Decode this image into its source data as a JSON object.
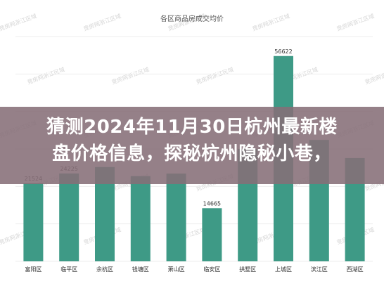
{
  "chart_data": {
    "type": "bar",
    "title": "各区商品房成交均价",
    "categories": [
      "富阳区",
      "临平区",
      "余杭区",
      "钱塘区",
      "萧山区",
      "临安区",
      "拱墅区",
      "上城区",
      "滨江区",
      "西湖区"
    ],
    "values": [
      21524,
      24225,
      null,
      null,
      null,
      14665,
      null,
      56622,
      null,
      null
    ],
    "value_labels": [
      "21524",
      "24225",
      "",
      "",
      "",
      "14665",
      "",
      "56622",
      "",
      ""
    ],
    "ylim": [
      0,
      62000
    ],
    "bar_color": "#3e9a86",
    "grid": true
  },
  "watermark_text": "竞房网浙江区域",
  "overlay": {
    "headline": [
      "猜测2024年11月30日杭州最新楼",
      "盘价格信息，探秘杭州隐秘小巷，"
    ],
    "background": "#866e78"
  },
  "visual_heights_for_hidden_bars": {
    "余杭区": 26000,
    "钱塘区": 23500,
    "萧山区": 24200,
    "拱墅区": 31000,
    "滨江区": 33500,
    "西湖区": 28500
  }
}
